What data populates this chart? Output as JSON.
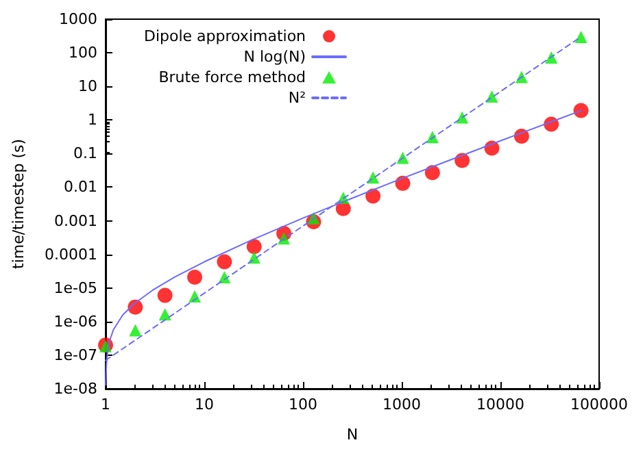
{
  "chart_data": {
    "type": "scatter",
    "xlabel": "N",
    "ylabel": "time/timestep (s)",
    "log": "xy",
    "grid": false,
    "legend": "top left",
    "xlim": [
      1,
      100000
    ],
    "xticks": [
      1,
      10,
      100,
      1000,
      10000,
      100000
    ],
    "ylim": [
      1e-08,
      1000
    ],
    "yticks": [
      {
        "value": 1e-08,
        "label": "1e-08"
      },
      {
        "value": 1e-07,
        "label": "1e-07"
      },
      {
        "value": 1e-06,
        "label": "1e-06"
      },
      {
        "value": 1e-05,
        "label": "1e-05"
      },
      0.0001,
      0.001,
      0.01,
      0.1,
      1,
      10,
      100,
      1000
    ],
    "series": [
      {
        "name": "Dipole approximation",
        "marker": "circle",
        "color": "#ff0000",
        "x": [
          1,
          2,
          4,
          8,
          16,
          32,
          64,
          128,
          256,
          512,
          1024,
          2048,
          4096,
          8192,
          16384,
          32768,
          65536
        ],
        "values": [
          2e-07,
          2.7e-06,
          6e-06,
          2.1e-05,
          6e-05,
          0.00017,
          0.00042,
          0.00093,
          0.0023,
          0.0054,
          0.013,
          0.027,
          0.062,
          0.145,
          0.33,
          0.75,
          1.9
        ]
      },
      {
        "name": "N log(N)",
        "type": "line",
        "line_style": "solid",
        "marker": "none",
        "color": "#6b6bff",
        "x": [
          1.005,
          1.02,
          1.05,
          1.1,
          1.2,
          1.5,
          2,
          3,
          5,
          10,
          30,
          100,
          300,
          1000,
          3000,
          10000,
          30000,
          65536
        ],
        "values": [
          1.3e-08,
          5.2e-08,
          1.3e-07,
          2.7e-07,
          5.7e-07,
          1.6e-06,
          3.6e-06,
          8.6e-06,
          2.1e-05,
          6e-05,
          0.000265,
          0.0012,
          0.00445,
          0.018,
          0.062,
          0.24,
          0.8,
          1.9
        ]
      },
      {
        "name": "Brute force method",
        "marker": "triangle",
        "color": "#00ee00",
        "x": [
          1,
          2,
          4,
          8,
          16,
          32,
          64,
          128,
          256,
          512,
          1024,
          2048,
          4096,
          8192,
          16384,
          32768,
          65536
        ],
        "values": [
          1.85e-07,
          5.5e-07,
          1.65e-06,
          5.6e-06,
          2.1e-05,
          8.1e-05,
          0.0003,
          0.0012,
          0.0048,
          0.0195,
          0.075,
          0.31,
          1.2,
          5,
          19,
          72,
          295
        ]
      },
      {
        "name": "N²",
        "type": "line",
        "line_style": "dashed",
        "marker": "none",
        "color": "#6b6bff",
        "x": [
          1,
          10,
          100,
          1000,
          10000,
          65536
        ],
        "values": [
          7e-08,
          7e-06,
          0.0007,
          0.07,
          7,
          300
        ]
      }
    ]
  }
}
